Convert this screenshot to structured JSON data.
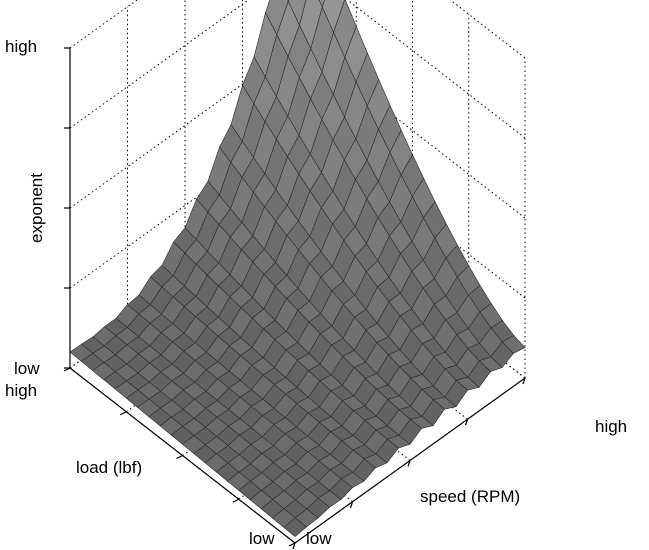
{
  "chart_data": {
    "type": "surface",
    "title": "",
    "zlabel": "exponent",
    "ylabel": "load (lbf)",
    "xlabel": "speed (RPM)",
    "z_ticks": [
      "high",
      "low"
    ],
    "y_ticks": [
      "high",
      "low"
    ],
    "x_ticks": [
      "low",
      "high"
    ],
    "grid": true,
    "surface_color": "#7a7a7a",
    "description_values": {
      "x_range": [
        0,
        1
      ],
      "y_range": [
        0,
        1
      ],
      "z_range": [
        0,
        1
      ]
    },
    "surface": {
      "rows": 21,
      "cols": 21,
      "z_corner_low_speed_low_load": 0.02,
      "z_corner_low_speed_high_load": 0.05,
      "z_corner_high_speed_low_load": 0.1,
      "z_corner_high_speed_high_load": 1.0
    }
  }
}
